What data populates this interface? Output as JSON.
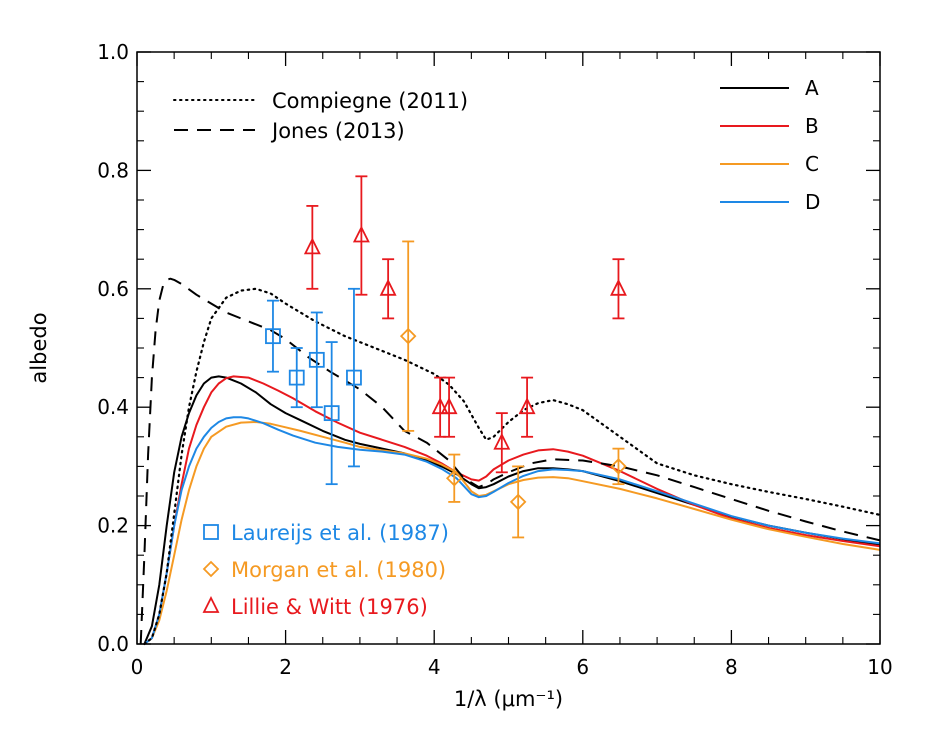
{
  "chart_data": {
    "type": "line",
    "title": "",
    "xlabel": "1/λ (μm⁻¹)",
    "ylabel": "albedo",
    "xlim": [
      0,
      10
    ],
    "ylim": [
      0.0,
      1.0
    ],
    "xticks": [
      0,
      2,
      4,
      6,
      8,
      10
    ],
    "xtick_labels": [
      "0",
      "2",
      "4",
      "6",
      "8",
      "10"
    ],
    "yticks": [
      0.0,
      0.2,
      0.4,
      0.6,
      0.8,
      1.0
    ],
    "ytick_labels": [
      "0.0",
      "0.2",
      "0.4",
      "0.6",
      "0.8",
      "1.0"
    ],
    "grid": false,
    "legend_lines_position": "top-right",
    "legend_styles_position": "top-left",
    "legend_points_position": "bottom-left",
    "series": [
      {
        "name": "A",
        "color": "#000000",
        "style": "solid",
        "x": [
          0.1,
          0.2,
          0.3,
          0.4,
          0.5,
          0.6,
          0.7,
          0.8,
          0.9,
          1.0,
          1.1,
          1.2,
          1.4,
          1.6,
          1.8,
          2.0,
          2.2,
          2.5,
          2.8,
          3.0,
          3.3,
          3.6,
          3.9,
          4.1,
          4.3,
          4.5,
          4.6,
          4.7,
          4.8,
          5.0,
          5.2,
          5.4,
          5.6,
          5.8,
          6.0,
          6.5,
          7.0,
          7.5,
          8.0,
          8.5,
          9.0,
          9.5,
          10.0
        ],
        "y": [
          0.0,
          0.03,
          0.1,
          0.2,
          0.29,
          0.35,
          0.39,
          0.42,
          0.44,
          0.45,
          0.452,
          0.45,
          0.44,
          0.425,
          0.405,
          0.39,
          0.378,
          0.36,
          0.345,
          0.338,
          0.33,
          0.322,
          0.31,
          0.3,
          0.287,
          0.27,
          0.263,
          0.265,
          0.27,
          0.283,
          0.292,
          0.297,
          0.297,
          0.295,
          0.292,
          0.275,
          0.255,
          0.235,
          0.215,
          0.2,
          0.188,
          0.177,
          0.168
        ]
      },
      {
        "name": "B",
        "color": "#e8191e",
        "style": "solid",
        "x": [
          0.1,
          0.2,
          0.3,
          0.4,
          0.5,
          0.6,
          0.7,
          0.8,
          0.9,
          1.0,
          1.1,
          1.2,
          1.3,
          1.5,
          1.7,
          1.9,
          2.1,
          2.4,
          2.7,
          3.0,
          3.3,
          3.6,
          3.9,
          4.1,
          4.3,
          4.5,
          4.6,
          4.7,
          4.8,
          5.0,
          5.2,
          5.4,
          5.6,
          5.8,
          6.0,
          6.5,
          7.0,
          7.5,
          8.0,
          8.5,
          9.0,
          9.5,
          10.0
        ],
        "y": [
          0.0,
          0.01,
          0.05,
          0.12,
          0.2,
          0.27,
          0.33,
          0.37,
          0.4,
          0.425,
          0.44,
          0.449,
          0.452,
          0.45,
          0.44,
          0.428,
          0.415,
          0.393,
          0.374,
          0.357,
          0.345,
          0.333,
          0.318,
          0.305,
          0.29,
          0.278,
          0.276,
          0.283,
          0.295,
          0.31,
          0.32,
          0.327,
          0.329,
          0.325,
          0.318,
          0.292,
          0.262,
          0.235,
          0.212,
          0.196,
          0.184,
          0.174,
          0.165
        ]
      },
      {
        "name": "C",
        "color": "#f59a23",
        "style": "solid",
        "x": [
          0.1,
          0.2,
          0.3,
          0.4,
          0.5,
          0.6,
          0.7,
          0.8,
          0.9,
          1.0,
          1.2,
          1.4,
          1.6,
          1.8,
          2.0,
          2.2,
          2.5,
          2.8,
          3.0,
          3.3,
          3.6,
          3.9,
          4.1,
          4.3,
          4.5,
          4.6,
          4.7,
          4.8,
          5.0,
          5.2,
          5.4,
          5.6,
          5.8,
          6.0,
          6.5,
          7.0,
          7.5,
          8.0,
          8.5,
          9.0,
          9.5,
          10.0
        ],
        "y": [
          0.0,
          0.01,
          0.04,
          0.09,
          0.15,
          0.21,
          0.26,
          0.3,
          0.33,
          0.35,
          0.367,
          0.374,
          0.375,
          0.372,
          0.366,
          0.36,
          0.35,
          0.34,
          0.333,
          0.327,
          0.322,
          0.313,
          0.303,
          0.29,
          0.258,
          0.25,
          0.252,
          0.258,
          0.27,
          0.277,
          0.281,
          0.282,
          0.28,
          0.275,
          0.262,
          0.246,
          0.228,
          0.21,
          0.194,
          0.181,
          0.169,
          0.159
        ]
      },
      {
        "name": "D",
        "color": "#1e88e5",
        "style": "solid",
        "x": [
          0.1,
          0.2,
          0.3,
          0.4,
          0.5,
          0.6,
          0.7,
          0.8,
          0.9,
          1.0,
          1.1,
          1.2,
          1.3,
          1.4,
          1.5,
          1.7,
          1.9,
          2.1,
          2.4,
          2.7,
          3.0,
          3.3,
          3.6,
          3.9,
          4.1,
          4.3,
          4.5,
          4.6,
          4.7,
          4.8,
          5.0,
          5.2,
          5.4,
          5.6,
          5.8,
          6.0,
          6.5,
          7.0,
          7.5,
          8.0,
          8.5,
          9.0,
          9.5,
          10.0
        ],
        "y": [
          0.0,
          0.01,
          0.05,
          0.12,
          0.2,
          0.26,
          0.3,
          0.33,
          0.35,
          0.365,
          0.375,
          0.381,
          0.383,
          0.383,
          0.381,
          0.373,
          0.362,
          0.352,
          0.34,
          0.333,
          0.328,
          0.325,
          0.32,
          0.308,
          0.296,
          0.28,
          0.253,
          0.248,
          0.25,
          0.257,
          0.272,
          0.284,
          0.292,
          0.295,
          0.294,
          0.292,
          0.278,
          0.258,
          0.237,
          0.216,
          0.2,
          0.188,
          0.178,
          0.17
        ]
      },
      {
        "name": "Compiegne (2011)",
        "color": "#000000",
        "style": "dotted",
        "x": [
          0.1,
          0.2,
          0.3,
          0.4,
          0.5,
          0.6,
          0.7,
          0.8,
          0.9,
          1.0,
          1.2,
          1.4,
          1.6,
          1.8,
          2.0,
          2.4,
          2.8,
          3.2,
          3.6,
          4.0,
          4.2,
          4.4,
          4.6,
          4.7,
          4.8,
          5.0,
          5.2,
          5.4,
          5.6,
          5.8,
          6.0,
          6.5,
          7.0,
          7.5,
          8.0,
          8.5,
          9.0,
          9.5,
          10.0
        ],
        "y": [
          0.0,
          0.01,
          0.05,
          0.12,
          0.22,
          0.32,
          0.4,
          0.46,
          0.51,
          0.55,
          0.585,
          0.597,
          0.6,
          0.592,
          0.575,
          0.545,
          0.52,
          0.5,
          0.48,
          0.456,
          0.438,
          0.41,
          0.365,
          0.345,
          0.35,
          0.375,
          0.395,
          0.407,
          0.412,
          0.405,
          0.395,
          0.35,
          0.305,
          0.285,
          0.27,
          0.257,
          0.245,
          0.232,
          0.218
        ]
      },
      {
        "name": "Jones (2013)",
        "color": "#000000",
        "style": "dashed",
        "x": [
          0.05,
          0.1,
          0.15,
          0.2,
          0.25,
          0.3,
          0.35,
          0.4,
          0.45,
          0.5,
          0.6,
          0.8,
          1.0,
          1.2,
          1.5,
          1.8,
          2.0,
          2.3,
          2.6,
          3.0,
          3.3,
          3.6,
          3.9,
          4.2,
          4.4,
          4.6,
          4.7,
          4.8,
          5.0,
          5.3,
          5.6,
          6.0,
          6.5,
          7.0,
          7.5,
          8.0,
          8.5,
          9.0,
          9.5,
          10.0
        ],
        "y": [
          0.0,
          0.15,
          0.32,
          0.45,
          0.53,
          0.58,
          0.605,
          0.615,
          0.617,
          0.615,
          0.608,
          0.59,
          0.575,
          0.56,
          0.545,
          0.53,
          0.515,
          0.485,
          0.46,
          0.43,
          0.4,
          0.36,
          0.34,
          0.31,
          0.28,
          0.265,
          0.27,
          0.278,
          0.29,
          0.305,
          0.312,
          0.31,
          0.3,
          0.285,
          0.265,
          0.245,
          0.225,
          0.207,
          0.19,
          0.175
        ]
      }
    ],
    "points": [
      {
        "name": "Laureijs et al. (1987)",
        "marker": "square",
        "color": "#1e88e5",
        "data": [
          {
            "x": 1.83,
            "y": 0.52,
            "err_low": 0.46,
            "err_high": 0.58
          },
          {
            "x": 2.15,
            "y": 0.45,
            "err_low": 0.4,
            "err_high": 0.5
          },
          {
            "x": 2.42,
            "y": 0.48,
            "err_low": 0.4,
            "err_high": 0.56
          },
          {
            "x": 2.62,
            "y": 0.39,
            "err_low": 0.27,
            "err_high": 0.51
          },
          {
            "x": 2.92,
            "y": 0.45,
            "err_low": 0.3,
            "err_high": 0.6
          }
        ]
      },
      {
        "name": "Morgan et al. (1980)",
        "marker": "diamond",
        "color": "#f59a23",
        "data": [
          {
            "x": 3.65,
            "y": 0.52,
            "err_low": 0.36,
            "err_high": 0.68
          },
          {
            "x": 4.27,
            "y": 0.28,
            "err_low": 0.24,
            "err_high": 0.32
          },
          {
            "x": 5.13,
            "y": 0.24,
            "err_low": 0.18,
            "err_high": 0.3
          },
          {
            "x": 6.48,
            "y": 0.3,
            "err_low": 0.27,
            "err_high": 0.33
          }
        ]
      },
      {
        "name": "Lillie & Witt (1976)",
        "marker": "triangle",
        "color": "#e8191e",
        "data": [
          {
            "x": 2.36,
            "y": 0.67,
            "err_low": 0.6,
            "err_high": 0.74
          },
          {
            "x": 3.02,
            "y": 0.69,
            "err_low": 0.59,
            "err_high": 0.79
          },
          {
            "x": 3.38,
            "y": 0.6,
            "err_low": 0.55,
            "err_high": 0.65
          },
          {
            "x": 4.08,
            "y": 0.4,
            "err_low": 0.35,
            "err_high": 0.45
          },
          {
            "x": 4.2,
            "y": 0.4,
            "err_low": 0.35,
            "err_high": 0.45
          },
          {
            "x": 4.91,
            "y": 0.34,
            "err_low": 0.29,
            "err_high": 0.39
          },
          {
            "x": 5.25,
            "y": 0.4,
            "err_low": 0.35,
            "err_high": 0.45
          },
          {
            "x": 6.48,
            "y": 0.6,
            "err_low": 0.55,
            "err_high": 0.65
          }
        ]
      }
    ]
  }
}
